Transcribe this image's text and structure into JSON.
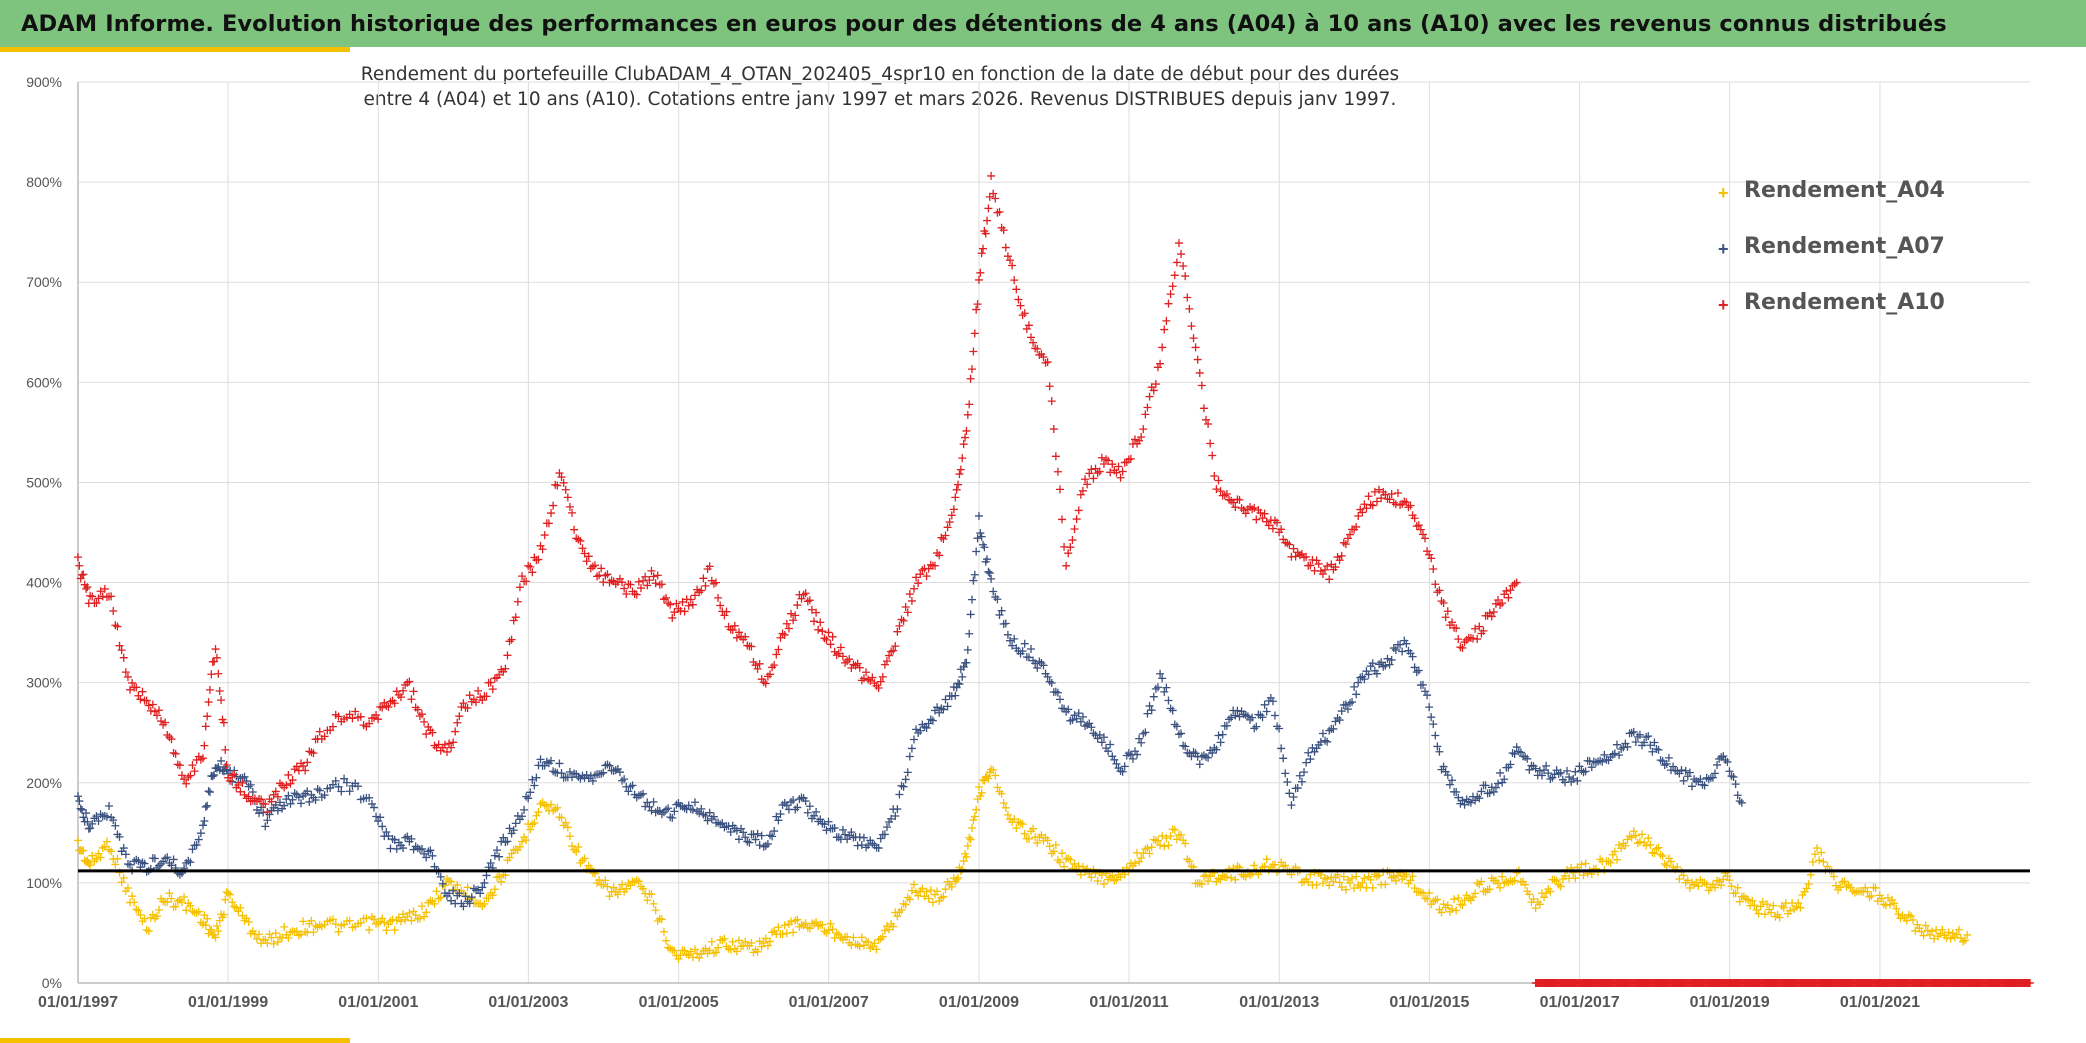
{
  "header": {
    "title": "ADAM Informe. Evolution historique des performances en euros pour des détentions de 4 ans (A04) à 10 ans (A10) avec les revenus connus distribués"
  },
  "colors": {
    "banner": "#7ec47e",
    "accent": "#f5c000",
    "A04": "#f5c000",
    "A07": "#3b5280",
    "A10": "#e02020",
    "reference_line": "#000000",
    "grid": "#dddddd"
  },
  "chart_data": {
    "type": "scatter",
    "title": [
      "Rendement du portefeuille ClubADAM_4_OTAN_202405_4spr10  en fonction de la date de début pour des durées",
      "entre 4 (A04) et 10 ans (A10). Cotations entre janv 1997 et mars 2026. Revenus DISTRIBUES depuis janv 1997."
    ],
    "xlabel": "",
    "ylabel": "",
    "x_tick_labels": [
      "01/01/1997",
      "01/01/1999",
      "01/01/2001",
      "01/01/2003",
      "01/01/2005",
      "01/01/2007",
      "01/01/2009",
      "01/01/2011",
      "01/01/2013",
      "01/01/2015",
      "01/01/2017",
      "01/01/2019",
      "01/01/2021"
    ],
    "y_tick_labels": [
      "0%",
      "100%",
      "200%",
      "300%",
      "400%",
      "500%",
      "600%",
      "700%",
      "800%",
      "900%"
    ],
    "xlim": [
      "1997-01-01",
      "2023-01-01"
    ],
    "ylim": [
      0,
      900
    ],
    "grid": true,
    "legend_position": "top-right",
    "reference_line": {
      "y": 112
    },
    "series": [
      {
        "name": "Rendement_A04",
        "color": "#f5c000",
        "points": [
          [
            "1997-01-01",
            138
          ],
          [
            "1997-03-01",
            118
          ],
          [
            "1997-06-01",
            140
          ],
          [
            "1997-09-01",
            90
          ],
          [
            "1997-12-01",
            55
          ],
          [
            "1998-03-01",
            85
          ],
          [
            "1998-06-01",
            80
          ],
          [
            "1998-09-01",
            65
          ],
          [
            "1998-11-01",
            45
          ],
          [
            "1999-01-01",
            90
          ],
          [
            "1999-04-01",
            60
          ],
          [
            "1999-07-01",
            40
          ],
          [
            "1999-10-01",
            50
          ],
          [
            "2000-01-01",
            55
          ],
          [
            "2000-04-01",
            60
          ],
          [
            "2000-08-01",
            55
          ],
          [
            "2000-12-01",
            60
          ],
          [
            "2001-03-01",
            58
          ],
          [
            "2001-06-01",
            65
          ],
          [
            "2001-09-01",
            75
          ],
          [
            "2001-12-01",
            100
          ],
          [
            "2002-03-01",
            90
          ],
          [
            "2002-06-01",
            80
          ],
          [
            "2002-09-01",
            110
          ],
          [
            "2002-12-01",
            140
          ],
          [
            "2003-03-01",
            180
          ],
          [
            "2003-06-01",
            170
          ],
          [
            "2003-09-01",
            130
          ],
          [
            "2003-12-01",
            100
          ],
          [
            "2004-03-01",
            90
          ],
          [
            "2004-06-01",
            100
          ],
          [
            "2004-09-01",
            80
          ],
          [
            "2004-12-01",
            30
          ],
          [
            "2005-03-01",
            28
          ],
          [
            "2005-06-01",
            35
          ],
          [
            "2005-09-01",
            40
          ],
          [
            "2005-12-01",
            35
          ],
          [
            "2006-03-01",
            40
          ],
          [
            "2006-06-01",
            55
          ],
          [
            "2006-09-01",
            60
          ],
          [
            "2006-12-01",
            55
          ],
          [
            "2007-03-01",
            50
          ],
          [
            "2007-06-01",
            40
          ],
          [
            "2007-09-01",
            38
          ],
          [
            "2007-12-01",
            70
          ],
          [
            "2008-03-01",
            95
          ],
          [
            "2008-06-01",
            85
          ],
          [
            "2008-09-01",
            100
          ],
          [
            "2008-11-01",
            130
          ],
          [
            "2009-01-01",
            190
          ],
          [
            "2009-03-01",
            215
          ],
          [
            "2009-06-01",
            160
          ],
          [
            "2009-09-01",
            150
          ],
          [
            "2009-12-01",
            140
          ],
          [
            "2010-03-01",
            120
          ],
          [
            "2010-06-01",
            110
          ],
          [
            "2010-09-01",
            105
          ],
          [
            "2010-12-01",
            110
          ],
          [
            "2011-03-01",
            130
          ],
          [
            "2011-06-01",
            140
          ],
          [
            "2011-09-01",
            150
          ],
          [
            "2011-12-01",
            100
          ],
          [
            "2012-03-01",
            108
          ],
          [
            "2012-06-01",
            110
          ],
          [
            "2012-09-01",
            112
          ],
          [
            "2012-12-01",
            120
          ],
          [
            "2013-03-01",
            110
          ],
          [
            "2013-06-01",
            105
          ],
          [
            "2013-09-01",
            102
          ],
          [
            "2013-12-01",
            100
          ],
          [
            "2014-03-01",
            100
          ],
          [
            "2014-06-01",
            105
          ],
          [
            "2014-09-01",
            108
          ],
          [
            "2014-12-01",
            90
          ],
          [
            "2015-03-01",
            75
          ],
          [
            "2015-06-01",
            80
          ],
          [
            "2015-09-01",
            95
          ],
          [
            "2015-12-01",
            100
          ],
          [
            "2016-03-01",
            110
          ],
          [
            "2016-06-01",
            80
          ],
          [
            "2016-09-01",
            100
          ],
          [
            "2016-12-01",
            110
          ],
          [
            "2017-03-01",
            115
          ],
          [
            "2017-06-01",
            120
          ],
          [
            "2017-09-01",
            150
          ],
          [
            "2017-12-01",
            140
          ],
          [
            "2018-03-01",
            120
          ],
          [
            "2018-06-01",
            100
          ],
          [
            "2018-09-01",
            95
          ],
          [
            "2018-12-01",
            105
          ],
          [
            "2019-03-01",
            85
          ],
          [
            "2019-06-01",
            75
          ],
          [
            "2019-09-01",
            72
          ],
          [
            "2019-12-01",
            75
          ],
          [
            "2020-03-01",
            130
          ],
          [
            "2020-06-01",
            100
          ],
          [
            "2020-09-01",
            95
          ],
          [
            "2020-12-01",
            90
          ],
          [
            "2021-03-01",
            80
          ],
          [
            "2021-06-01",
            60
          ],
          [
            "2021-09-01",
            50
          ],
          [
            "2021-12-01",
            45
          ],
          [
            "2022-03-01",
            48
          ]
        ]
      },
      {
        "name": "Rendement_A07",
        "color": "#3b5280",
        "points": [
          [
            "1997-01-01",
            180
          ],
          [
            "1997-03-01",
            155
          ],
          [
            "1997-06-01",
            170
          ],
          [
            "1997-09-01",
            120
          ],
          [
            "1997-12-01",
            115
          ],
          [
            "1998-03-01",
            125
          ],
          [
            "1998-06-01",
            110
          ],
          [
            "1998-09-01",
            160
          ],
          [
            "1998-11-01",
            220
          ],
          [
            "1999-01-01",
            210
          ],
          [
            "1999-04-01",
            200
          ],
          [
            "1999-07-01",
            160
          ],
          [
            "1999-10-01",
            180
          ],
          [
            "2000-01-01",
            185
          ],
          [
            "2000-04-01",
            190
          ],
          [
            "2000-08-01",
            200
          ],
          [
            "2000-12-01",
            180
          ],
          [
            "2001-03-01",
            140
          ],
          [
            "2001-06-01",
            140
          ],
          [
            "2001-09-01",
            130
          ],
          [
            "2001-12-01",
            90
          ],
          [
            "2002-03-01",
            80
          ],
          [
            "2002-06-01",
            100
          ],
          [
            "2002-09-01",
            140
          ],
          [
            "2002-12-01",
            170
          ],
          [
            "2003-03-01",
            220
          ],
          [
            "2003-06-01",
            215
          ],
          [
            "2003-09-01",
            200
          ],
          [
            "2003-12-01",
            210
          ],
          [
            "2004-03-01",
            215
          ],
          [
            "2004-06-01",
            190
          ],
          [
            "2004-09-01",
            175
          ],
          [
            "2004-12-01",
            170
          ],
          [
            "2005-03-01",
            180
          ],
          [
            "2005-06-01",
            165
          ],
          [
            "2005-09-01",
            155
          ],
          [
            "2005-12-01",
            145
          ],
          [
            "2006-03-01",
            140
          ],
          [
            "2006-06-01",
            175
          ],
          [
            "2006-09-01",
            180
          ],
          [
            "2006-12-01",
            160
          ],
          [
            "2007-03-01",
            150
          ],
          [
            "2007-06-01",
            140
          ],
          [
            "2007-09-01",
            140
          ],
          [
            "2007-12-01",
            175
          ],
          [
            "2008-03-01",
            250
          ],
          [
            "2008-06-01",
            270
          ],
          [
            "2008-09-01",
            290
          ],
          [
            "2008-11-01",
            320
          ],
          [
            "2009-01-01",
            460
          ],
          [
            "2009-03-01",
            400
          ],
          [
            "2009-06-01",
            340
          ],
          [
            "2009-09-01",
            330
          ],
          [
            "2009-12-01",
            310
          ],
          [
            "2010-03-01",
            270
          ],
          [
            "2010-06-01",
            260
          ],
          [
            "2010-09-01",
            240
          ],
          [
            "2010-12-01",
            215
          ],
          [
            "2011-03-01",
            240
          ],
          [
            "2011-06-01",
            310
          ],
          [
            "2011-09-01",
            250
          ],
          [
            "2011-12-01",
            220
          ],
          [
            "2012-03-01",
            240
          ],
          [
            "2012-06-01",
            270
          ],
          [
            "2012-09-01",
            260
          ],
          [
            "2012-12-01",
            285
          ],
          [
            "2013-03-01",
            180
          ],
          [
            "2013-06-01",
            230
          ],
          [
            "2013-09-01",
            250
          ],
          [
            "2013-12-01",
            280
          ],
          [
            "2014-03-01",
            310
          ],
          [
            "2014-06-01",
            320
          ],
          [
            "2014-09-01",
            340
          ],
          [
            "2014-12-01",
            300
          ],
          [
            "2015-03-01",
            220
          ],
          [
            "2015-06-01",
            180
          ],
          [
            "2015-09-01",
            190
          ],
          [
            "2015-12-01",
            200
          ],
          [
            "2016-03-01",
            230
          ],
          [
            "2016-06-01",
            210
          ],
          [
            "2016-09-01",
            210
          ],
          [
            "2016-12-01",
            205
          ],
          [
            "2017-03-01",
            220
          ],
          [
            "2017-06-01",
            225
          ],
          [
            "2017-09-01",
            245
          ],
          [
            "2017-12-01",
            240
          ],
          [
            "2018-03-01",
            220
          ],
          [
            "2018-06-01",
            205
          ],
          [
            "2018-09-01",
            200
          ],
          [
            "2018-12-01",
            225
          ],
          [
            "2019-03-01",
            180
          ]
        ]
      },
      {
        "name": "Rendement_A10",
        "color": "#e02020",
        "points": [
          [
            "1997-01-01",
            420
          ],
          [
            "1997-03-01",
            380
          ],
          [
            "1997-06-01",
            390
          ],
          [
            "1997-09-01",
            300
          ],
          [
            "1997-12-01",
            280
          ],
          [
            "1998-03-01",
            260
          ],
          [
            "1998-06-01",
            200
          ],
          [
            "1998-09-01",
            230
          ],
          [
            "1998-11-01",
            340
          ],
          [
            "1999-01-01",
            210
          ],
          [
            "1999-04-01",
            190
          ],
          [
            "1999-07-01",
            175
          ],
          [
            "1999-10-01",
            200
          ],
          [
            "2000-01-01",
            215
          ],
          [
            "2000-04-01",
            250
          ],
          [
            "2000-08-01",
            270
          ],
          [
            "2000-12-01",
            260
          ],
          [
            "2001-03-01",
            280
          ],
          [
            "2001-06-01",
            295
          ],
          [
            "2001-09-01",
            250
          ],
          [
            "2001-12-01",
            230
          ],
          [
            "2002-03-01",
            280
          ],
          [
            "2002-06-01",
            290
          ],
          [
            "2002-09-01",
            310
          ],
          [
            "2002-12-01",
            400
          ],
          [
            "2003-03-01",
            430
          ],
          [
            "2003-06-01",
            510
          ],
          [
            "2003-09-01",
            440
          ],
          [
            "2003-12-01",
            410
          ],
          [
            "2004-03-01",
            400
          ],
          [
            "2004-06-01",
            390
          ],
          [
            "2004-09-01",
            410
          ],
          [
            "2004-12-01",
            370
          ],
          [
            "2005-03-01",
            380
          ],
          [
            "2005-06-01",
            410
          ],
          [
            "2005-09-01",
            360
          ],
          [
            "2005-12-01",
            340
          ],
          [
            "2006-03-01",
            300
          ],
          [
            "2006-06-01",
            350
          ],
          [
            "2006-09-01",
            390
          ],
          [
            "2006-12-01",
            350
          ],
          [
            "2007-03-01",
            330
          ],
          [
            "2007-06-01",
            310
          ],
          [
            "2007-09-01",
            300
          ],
          [
            "2007-12-01",
            345
          ],
          [
            "2008-03-01",
            400
          ],
          [
            "2008-06-01",
            420
          ],
          [
            "2008-09-01",
            480
          ],
          [
            "2008-11-01",
            550
          ],
          [
            "2009-01-01",
            700
          ],
          [
            "2009-03-01",
            800
          ],
          [
            "2009-06-01",
            720
          ],
          [
            "2009-09-01",
            650
          ],
          [
            "2009-12-01",
            620
          ],
          [
            "2010-03-01",
            420
          ],
          [
            "2010-06-01",
            500
          ],
          [
            "2010-09-01",
            520
          ],
          [
            "2010-12-01",
            510
          ],
          [
            "2011-03-01",
            550
          ],
          [
            "2011-06-01",
            620
          ],
          [
            "2011-09-01",
            740
          ],
          [
            "2011-12-01",
            620
          ],
          [
            "2012-03-01",
            500
          ],
          [
            "2012-06-01",
            480
          ],
          [
            "2012-09-01",
            470
          ],
          [
            "2012-12-01",
            460
          ],
          [
            "2013-03-01",
            430
          ],
          [
            "2013-06-01",
            420
          ],
          [
            "2013-09-01",
            410
          ],
          [
            "2013-12-01",
            440
          ],
          [
            "2014-03-01",
            480
          ],
          [
            "2014-06-01",
            490
          ],
          [
            "2014-09-01",
            480
          ],
          [
            "2014-12-01",
            450
          ],
          [
            "2015-03-01",
            380
          ],
          [
            "2015-06-01",
            340
          ],
          [
            "2015-09-01",
            350
          ],
          [
            "2015-12-01",
            380
          ],
          [
            "2016-03-01",
            400
          ]
        ]
      }
    ]
  }
}
